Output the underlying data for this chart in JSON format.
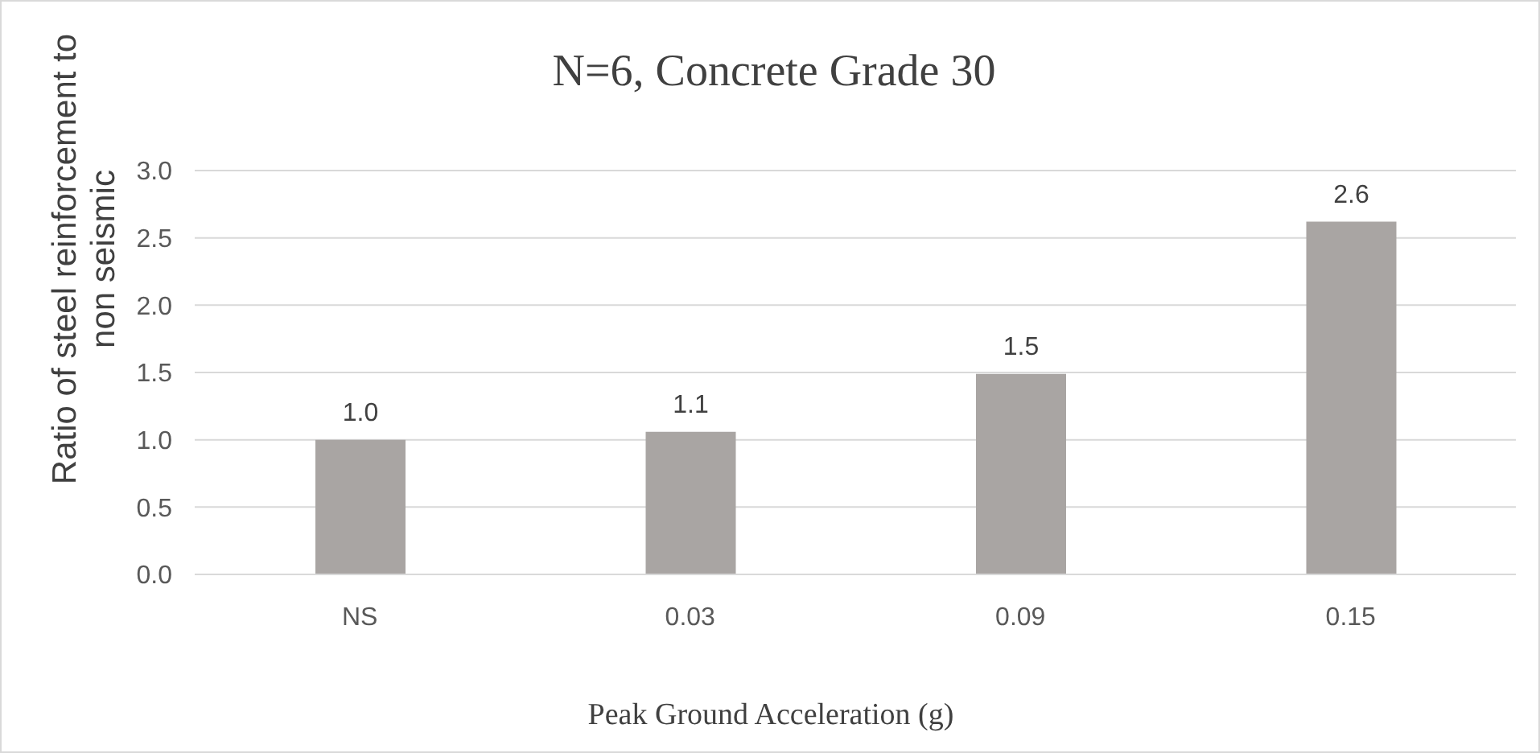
{
  "chart_data": {
    "type": "bar",
    "title": "N=6, Concrete Grade 30",
    "xlabel": "Peak Ground Acceleration (g)",
    "ylabel": "Ratio of steel reinforcement to non seismic",
    "categories": [
      "NS",
      "0.03",
      "0.09",
      "0.15"
    ],
    "values": [
      1.0,
      1.06,
      1.49,
      2.62
    ],
    "value_labels": [
      "1.0",
      "1.1",
      "1.5",
      "2.6"
    ],
    "color": "#a9a5a3",
    "ylim": [
      0,
      3
    ],
    "yticks": [
      {
        "value": 0,
        "label": "0.0"
      },
      {
        "value": 0.5,
        "label": "0.5"
      },
      {
        "value": 1,
        "label": "1.0"
      },
      {
        "value": 1.5,
        "label": "1.5"
      },
      {
        "value": 2,
        "label": "2.0"
      },
      {
        "value": 2.5,
        "label": "2.5"
      },
      {
        "value": 3,
        "label": "3.0"
      }
    ],
    "grid": "y",
    "legend": false
  }
}
